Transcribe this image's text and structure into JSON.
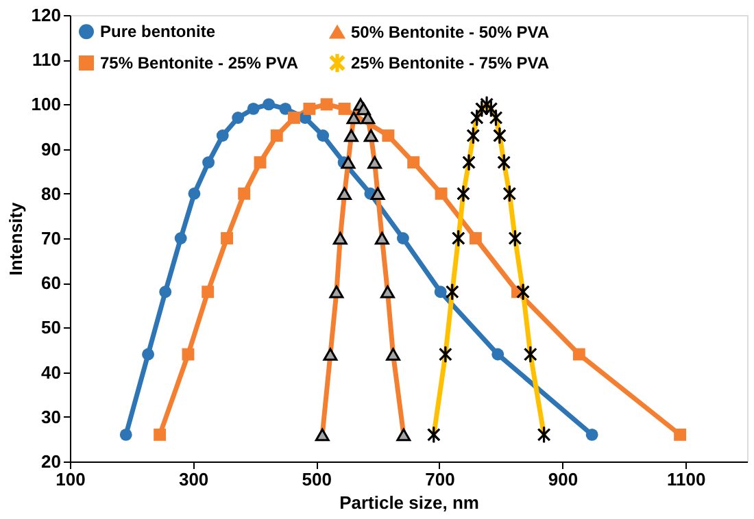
{
  "chart_data": {
    "type": "line",
    "xlabel": "Particle size, nm",
    "ylabel": "Intensity",
    "xlim": [
      100,
      1200
    ],
    "xticks": [
      100,
      300,
      500,
      700,
      900,
      {
        "value": 1100,
        "label": "1100"
      }
    ],
    "ylim": [
      20,
      120
    ],
    "yticks": [
      20,
      30,
      40,
      50,
      60,
      70,
      80,
      90,
      100,
      110,
      120
    ],
    "grid": false,
    "legend": "top",
    "series": [
      {
        "name": "Pure bentonite",
        "color": "#2e75b6",
        "marker": "circle",
        "x": [
          191,
          227,
          255,
          280,
          302,
          325,
          348,
          373,
          398,
          423,
          450,
          482,
          511,
          545,
          588,
          641,
          702,
          795,
          948
        ],
        "values": [
          26,
          44,
          58,
          70,
          80,
          87,
          93,
          97,
          99,
          100,
          99,
          97,
          93,
          87,
          80,
          70,
          58,
          44,
          26
        ]
      },
      {
        "name": "75% Bentonite - 25% PVA",
        "color": "#f47f30",
        "marker": "square",
        "x": [
          246,
          292,
          324,
          355,
          383,
          409,
          436,
          464,
          489,
          517,
          546,
          617,
          658,
          703,
          759,
          827,
          927,
          1091
        ],
        "values": [
          26,
          44,
          58,
          70,
          80,
          87,
          93,
          97,
          99,
          100,
          99,
          93,
          87,
          80,
          70,
          58,
          44,
          26
        ]
      },
      {
        "name": "50% Bentonite - 50% PVA",
        "color": "#f47f30",
        "marker": "triangle",
        "x": [
          510,
          523,
          533,
          539,
          546,
          552,
          557,
          561,
          572,
          577,
          584,
          589,
          595,
          600,
          607,
          616,
          625,
          642
        ],
        "values": [
          26,
          44,
          58,
          70,
          80,
          87,
          93,
          97,
          100,
          99,
          97,
          93,
          87,
          80,
          70,
          58,
          44,
          26
        ]
      },
      {
        "name": "25% Bentonite - 75% PVA",
        "color": "#ffc000",
        "marker": "cross",
        "x": [
          691,
          710,
          721,
          731,
          739,
          748,
          755,
          761,
          769,
          777,
          784,
          792,
          798,
          805,
          814,
          823,
          836,
          848,
          870
        ],
        "values": [
          26,
          44,
          58,
          70,
          80,
          87,
          93,
          97,
          99,
          100,
          99,
          97,
          93,
          87,
          80,
          70,
          58,
          44,
          26
        ]
      }
    ]
  }
}
